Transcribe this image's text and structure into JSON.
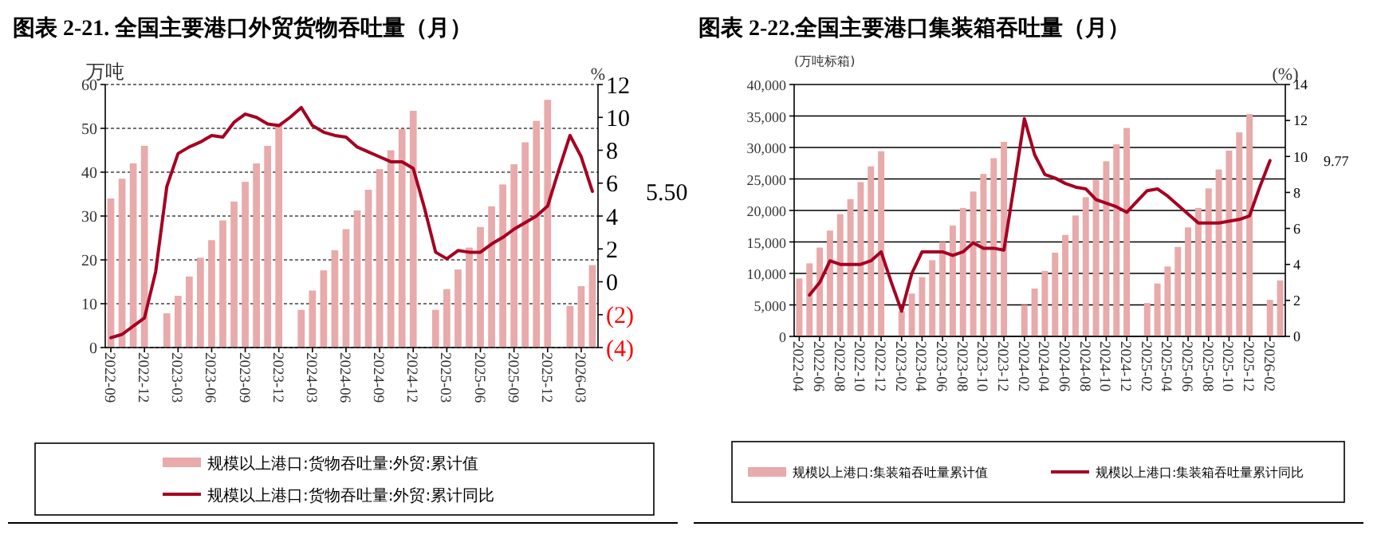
{
  "chart_data": [
    {
      "type": "bar",
      "title": "图表 2-21. 全国主要港口外贸货物吞吐量（月）",
      "ylabel": "万吨",
      "y2label": "%",
      "x": [
        "2022-09",
        "2022-10",
        "2022-11",
        "2022-12",
        "2023-01",
        "2023-02",
        "2023-03",
        "2023-04",
        "2023-05",
        "2023-06",
        "2023-07",
        "2023-08",
        "2023-09",
        "2023-10",
        "2023-11",
        "2023-12",
        "2024-01",
        "2024-02",
        "2024-03",
        "2024-04",
        "2024-05",
        "2024-06",
        "2024-07",
        "2024-08",
        "2024-09",
        "2024-10",
        "2024-11",
        "2024-12",
        "2025-01",
        "2025-02",
        "2025-03",
        "2025-04",
        "2025-05",
        "2025-06",
        "2025-07",
        "2025-08",
        "2025-09",
        "2025-10",
        "2025-11",
        "2025-12",
        "2026-01",
        "2026-02",
        "2026-03",
        "2026-04"
      ],
      "xlim": [
        "2022-09",
        "2026-04"
      ],
      "xticks": [
        "2022-09",
        "2022-12",
        "2023-03",
        "2023-06",
        "2023-09",
        "2023-12",
        "2024-03",
        "2024-06",
        "2024-09",
        "2024-12",
        "2025-03",
        "2025-06",
        "2025-09",
        "2025-12",
        "2026-03"
      ],
      "series": [
        {
          "name": "规模以上港口:货物吞吐量:外贸:累计值",
          "color": "#e8aaaa",
          "values": [
            34,
            38.5,
            42,
            46,
            null,
            7.8,
            11.8,
            16.2,
            20.5,
            24.5,
            29,
            33.3,
            37.8,
            42,
            46,
            51,
            null,
            8.6,
            13,
            17.6,
            22.2,
            27,
            31.3,
            36,
            40.7,
            45,
            49.8,
            54,
            null,
            8.6,
            13.3,
            17.8,
            22.8,
            27.5,
            32.2,
            37.2,
            41.8,
            46.8,
            51.7,
            56.5,
            null,
            9.5,
            14,
            18.8
          ]
        },
        {
          "name": "规模以上港口:货物吞吐量:外贸:累计同比",
          "type": "line",
          "axis": "y2",
          "color": "#a50021",
          "values": [
            -3.4,
            -3.2,
            -2.7,
            -2.2,
            0.6,
            5.8,
            7.8,
            8.2,
            8.5,
            8.9,
            8.8,
            9.7,
            10.2,
            10.0,
            9.6,
            9.5,
            10.0,
            10.6,
            9.5,
            9.1,
            8.9,
            8.8,
            8.2,
            7.9,
            7.6,
            7.3,
            7.3,
            6.9,
            4.5,
            1.8,
            1.4,
            1.9,
            1.8,
            1.8,
            2.3,
            2.7,
            3.2,
            3.6,
            4.0,
            4.6,
            6.8,
            8.9,
            7.6,
            5.5
          ]
        }
      ],
      "ylim": [
        0,
        60
      ],
      "yticks": [
        0,
        10,
        20,
        30,
        40,
        50,
        60
      ],
      "y2lim": [
        -4,
        12
      ],
      "y2ticks": [
        {
          "value": -4,
          "label": "(4)"
        },
        {
          "value": -2,
          "label": "(2)"
        },
        0,
        2,
        4,
        6,
        8,
        10,
        12
      ],
      "grid": "y",
      "legend": "bottom",
      "marker": "none",
      "annotations": [
        "5.50"
      ]
    },
    {
      "type": "bar",
      "title": "图表 2-22.全国主要港口集装箱吞吐量（月）",
      "ylabel": "(万吨标箱)",
      "y2label": "(%)",
      "x": [
        "2022-04",
        "2022-05",
        "2022-06",
        "2022-07",
        "2022-08",
        "2022-09",
        "2022-10",
        "2022-11",
        "2022-12",
        "2023-01",
        "2023-02",
        "2023-03",
        "2023-04",
        "2023-05",
        "2023-06",
        "2023-07",
        "2023-08",
        "2023-09",
        "2023-10",
        "2023-11",
        "2023-12",
        "2024-01",
        "2024-02",
        "2024-03",
        "2024-04",
        "2024-05",
        "2024-06",
        "2024-07",
        "2024-08",
        "2024-09",
        "2024-10",
        "2024-11",
        "2024-12",
        "2025-01",
        "2025-02",
        "2025-03",
        "2025-04",
        "2025-05",
        "2025-06",
        "2025-07",
        "2025-08",
        "2025-09",
        "2025-10",
        "2025-11",
        "2025-12",
        "2026-01",
        "2026-02",
        "2026-03"
      ],
      "xlim": [
        "2022-04",
        "2026-03"
      ],
      "xticks": [
        "2022-04",
        "2022-06",
        "2022-08",
        "2022-10",
        "2022-12",
        "2023-02",
        "2023-04",
        "2023-06",
        "2023-08",
        "2023-10",
        "2023-12",
        "2024-02",
        "2024-04",
        "2024-06",
        "2024-08",
        "2024-10",
        "2024-12",
        "2025-02",
        "2025-04",
        "2025-06",
        "2025-08",
        "2025-10",
        "2025-12",
        "2026-02"
      ],
      "series": [
        {
          "name": "规模以上港口:集装箱吞吐量累计值",
          "color": "#e8aaaa",
          "values": [
            9200,
            11600,
            14100,
            16800,
            19400,
            21800,
            24500,
            27000,
            29400,
            null,
            4000,
            6800,
            9400,
            12100,
            15000,
            17600,
            20400,
            23000,
            25800,
            28300,
            30900,
            null,
            5000,
            7600,
            10400,
            13300,
            16100,
            19200,
            22100,
            24900,
            27800,
            30500,
            33100,
            null,
            5300,
            8400,
            11100,
            14200,
            17300,
            20400,
            23500,
            26500,
            29500,
            32400,
            35300,
            null,
            5800,
            8900
          ]
        },
        {
          "name": "规模以上港口:集装箱吞吐量累计同比",
          "type": "line",
          "axis": "y2",
          "color": "#a50021",
          "values": [
            null,
            2.3,
            3.0,
            4.2,
            4.0,
            4.0,
            4.0,
            4.2,
            4.7,
            3.0,
            1.4,
            3.5,
            4.7,
            4.7,
            4.7,
            4.5,
            4.7,
            5.2,
            4.9,
            4.9,
            4.8,
            8.4,
            12.1,
            10.1,
            9.0,
            8.8,
            8.5,
            8.3,
            8.2,
            7.6,
            7.4,
            7.2,
            6.9,
            7.5,
            8.1,
            8.2,
            7.8,
            7.3,
            6.8,
            6.3,
            6.3,
            6.3,
            6.4,
            6.5,
            6.7,
            8.3,
            9.77,
            null
          ]
        }
      ],
      "ylim": [
        0,
        40000
      ],
      "yticks": [
        0,
        {
          "value": 5000,
          "label": "5,000"
        },
        {
          "value": 10000,
          "label": "10,000"
        },
        {
          "value": 15000,
          "label": "15,000"
        },
        {
          "value": 20000,
          "label": "20,000"
        },
        {
          "value": 25000,
          "label": "25,000"
        },
        {
          "value": 30000,
          "label": "30,000"
        },
        {
          "value": 35000,
          "label": "35,000"
        },
        {
          "value": 40000,
          "label": "40,000"
        }
      ],
      "y2lim": [
        0,
        14
      ],
      "y2ticks": [
        0,
        2,
        4,
        6,
        8,
        10,
        12,
        14
      ],
      "grid": "y",
      "legend": "bottom",
      "marker": "none",
      "annotations": [
        "9.77"
      ]
    }
  ]
}
